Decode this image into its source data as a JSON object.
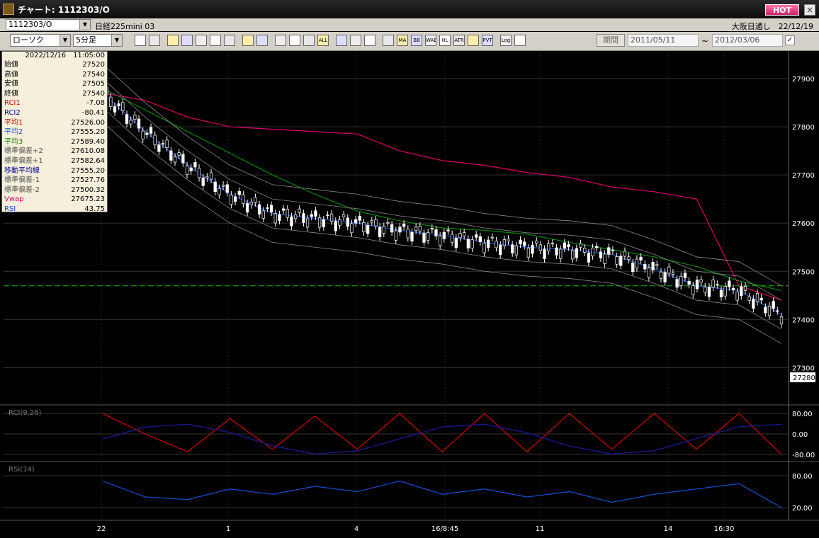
{
  "window": {
    "title": "チャート: 1112303/O",
    "hot_label": "HOT",
    "close_label": "×"
  },
  "header": {
    "symbol": "1112303/O",
    "instrument": "日経225mini 03",
    "market_date": "大阪日通し　22/12/19"
  },
  "toolbar": {
    "chart_type": "ローソク",
    "interval": "5分足",
    "period_label": "期間",
    "date_from": "2011/05/11",
    "date_to": "2012/03/06",
    "range_sep": "~",
    "icons": [
      "zoom-icon",
      "crosshair-icon",
      "scroll-left-icon",
      "fit-icon",
      "ruler-icon",
      "arrows-icon",
      "disabled-icon",
      "pen-icon",
      "pointer-icon",
      "trend-icon",
      "bar-icon",
      "bar2-icon",
      "all-icon",
      "settings-icon",
      "wrench-icon",
      "color-icon",
      "grid-icon",
      "ma-icon",
      "bb-icon",
      "wave-icon",
      "hl-icon",
      "atr-icon",
      "ab-icon",
      "pvt-icon",
      "log-icon",
      "export-icon"
    ],
    "icon_labels": [
      "",
      "",
      "",
      "",
      "",
      "",
      "",
      "",
      "",
      "",
      "",
      "",
      "ALL",
      "",
      "",
      "",
      "",
      "MA",
      "BB",
      "WAE",
      "HL",
      "ATR",
      "",
      "PVT",
      "Log",
      ""
    ]
  },
  "data_window": {
    "timestamp": "2022/12/16　11:05:00",
    "rows": [
      {
        "label": "始値",
        "value": "27520",
        "color": "#000000"
      },
      {
        "label": "高値",
        "value": "27540",
        "color": "#000000"
      },
      {
        "label": "安値",
        "value": "27505",
        "color": "#000000"
      },
      {
        "label": "終値",
        "value": "27540",
        "color": "#000000"
      },
      {
        "label": "RCI1",
        "value": "-7.08",
        "color": "#d40000"
      },
      {
        "label": "RCI2",
        "value": "-80.41",
        "color": "#00009a"
      },
      {
        "label": "平均1",
        "value": "27526.00",
        "color": "#d40000"
      },
      {
        "label": "平均2",
        "value": "27555.20",
        "color": "#1a4cd6"
      },
      {
        "label": "平均3",
        "value": "27589.40",
        "color": "#0a8a0a"
      },
      {
        "label": "標準偏差+2",
        "value": "27610.08",
        "color": "#555555"
      },
      {
        "label": "標準偏差+1",
        "value": "27582.64",
        "color": "#555555"
      },
      {
        "label": "移動平均線",
        "value": "27555.20",
        "color": "#00009a"
      },
      {
        "label": "標準偏差-1",
        "value": "27527.76",
        "color": "#555555"
      },
      {
        "label": "標準偏差-2",
        "value": "27500.32",
        "color": "#555555"
      },
      {
        "label": "Vwap",
        "value": "27675.23",
        "color": "#e0006a"
      },
      {
        "label": "RSI",
        "value": "43.75",
        "color": "#1a4cd6"
      }
    ]
  },
  "price_axis": {
    "ticks": [
      "27900",
      "27800",
      "27700",
      "27600",
      "27500",
      "27400",
      "27300"
    ],
    "current_price": "27280"
  },
  "rci_pane": {
    "label": "RCI(9,26)",
    "ticks": [
      "80.00",
      "0.00",
      "-80.00"
    ]
  },
  "rsi_pane": {
    "label": "RSI(14)",
    "ticks": [
      "80.00",
      "20.00"
    ]
  },
  "time_axis": {
    "labels": [
      "22",
      "1",
      "4",
      "16/8:45",
      "11",
      "14",
      "16:30"
    ]
  },
  "colors": {
    "background": "#000000",
    "candle": "#ffffff",
    "ma_short": "#d40000",
    "ma_mid": "#1a4cd6",
    "ma_long": "#0a8a0a",
    "bands": "#8a8a8a",
    "vwap": "#e0006a",
    "dashed_level": "#0a8a0a"
  },
  "chart_data": {
    "type": "line",
    "title": "",
    "xlabel": "",
    "ylabel": "",
    "ylim": [
      27230,
      27950
    ],
    "series": [
      {
        "name": "平均3",
        "values": [
          27880,
          27835,
          27790,
          27745,
          27700,
          27660,
          27625,
          27605,
          27590,
          27585,
          27577,
          27560,
          27545,
          27530,
          27510,
          27480,
          27460
        ]
      },
      {
        "name": "Vwap",
        "values": [
          27870,
          27855,
          27820,
          27800,
          27795,
          27790,
          27785,
          27750,
          27730,
          27720,
          27705,
          27695,
          27675,
          27665,
          27650,
          27470,
          27440
        ]
      },
      {
        "name": "平均2",
        "values": [
          27870,
          27790,
          27720,
          27660,
          27620,
          27610,
          27600,
          27585,
          27575,
          27560,
          27550,
          27545,
          27535,
          27505,
          27470,
          27460,
          27410
        ]
      }
    ],
    "rci": {
      "name": "RCI1",
      "values": [
        80,
        0,
        -70,
        60,
        -60,
        70,
        -60,
        80,
        -70,
        80,
        -70,
        80,
        -60,
        80,
        -60,
        80,
        -80
      ]
    },
    "rsi": {
      "values": [
        70,
        40,
        35,
        55,
        45,
        60,
        50,
        70,
        45,
        55,
        40,
        50,
        30,
        45,
        55,
        65,
        20
      ]
    }
  }
}
